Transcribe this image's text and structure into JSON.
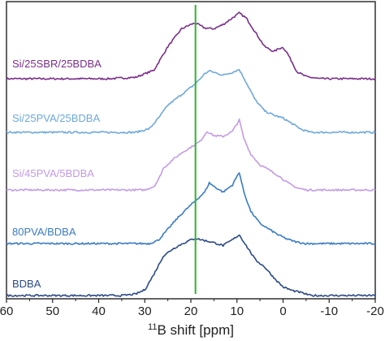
{
  "chart_data": {
    "type": "line",
    "xlabel": {
      "superscript": "11",
      "text": "B shift [ppm]"
    },
    "x_axis_reversed": true,
    "xlim": [
      60,
      -20
    ],
    "x_ticks": [
      "60",
      "50",
      "40",
      "30",
      "20",
      "10",
      "0",
      "-10",
      "-20"
    ],
    "y_axis_shown": false,
    "grid": false,
    "legend": "none",
    "reference_line": {
      "x": 19,
      "color": "#2db52d"
    },
    "series": [
      {
        "name": "Si/25SBR/25BDBA",
        "color": "#7a2e8a",
        "x": [
          60,
          38,
          32,
          28,
          25,
          22,
          20,
          19,
          17,
          15,
          13,
          11,
          9.5,
          8,
          6,
          4,
          2,
          1,
          0,
          -1,
          -3,
          -5,
          -8,
          -20
        ],
        "y": [
          0,
          0,
          0.02,
          0.12,
          0.45,
          0.7,
          0.76,
          0.78,
          0.71,
          0.7,
          0.76,
          0.85,
          0.92,
          0.85,
          0.65,
          0.45,
          0.38,
          0.42,
          0.44,
          0.35,
          0.1,
          0.03,
          0,
          0
        ]
      },
      {
        "name": "Si/25PVA/25BDBA",
        "color": "#6ea8dc",
        "x": [
          60,
          32,
          29,
          27,
          25,
          23,
          21,
          19,
          17,
          16,
          15,
          13,
          11,
          9.5,
          8,
          6,
          4,
          2,
          0,
          -2,
          -4,
          -6,
          -20
        ],
        "y": [
          0,
          0,
          0.05,
          0.2,
          0.38,
          0.48,
          0.58,
          0.68,
          0.82,
          0.86,
          0.84,
          0.8,
          0.84,
          0.88,
          0.7,
          0.45,
          0.3,
          0.24,
          0.2,
          0.12,
          0.04,
          0,
          0
        ]
      },
      {
        "name": "Si/45PVA/5BDBA",
        "color": "#c39be6",
        "x": [
          60,
          30,
          28,
          27,
          26,
          24,
          22,
          20,
          18,
          16.5,
          15,
          13,
          11,
          9.5,
          8.5,
          7,
          5,
          3,
          1,
          -1,
          -3,
          -5,
          -20
        ],
        "y": [
          0,
          0,
          0.05,
          0.15,
          0.3,
          0.42,
          0.52,
          0.6,
          0.68,
          0.82,
          0.76,
          0.75,
          0.82,
          0.98,
          0.72,
          0.5,
          0.35,
          0.28,
          0.2,
          0.1,
          0.03,
          0,
          0
        ]
      },
      {
        "name": "80PVA/BDBA",
        "color": "#3a7cc4",
        "x": [
          60,
          29,
          27,
          25,
          23,
          21,
          19,
          17,
          16,
          15,
          13,
          11,
          9.5,
          8.5,
          7,
          5,
          3,
          1,
          -1,
          -3,
          -5,
          -20
        ],
        "y": [
          0,
          0,
          0.05,
          0.2,
          0.35,
          0.48,
          0.6,
          0.72,
          0.85,
          0.8,
          0.72,
          0.82,
          1.0,
          0.72,
          0.45,
          0.28,
          0.2,
          0.12,
          0.06,
          0.02,
          0,
          0
        ]
      },
      {
        "name": "BDBA",
        "color": "#2c4a86",
        "x": [
          60,
          35,
          32,
          30,
          28,
          26,
          24,
          22,
          20,
          19,
          17,
          15,
          13,
          11,
          9.5,
          8,
          6,
          4,
          2,
          0,
          -2,
          -4,
          -6,
          -20
        ],
        "y": [
          0,
          0,
          0.02,
          0.08,
          0.3,
          0.55,
          0.65,
          0.72,
          0.78,
          0.8,
          0.77,
          0.74,
          0.7,
          0.78,
          0.85,
          0.7,
          0.5,
          0.4,
          0.25,
          0.12,
          0.07,
          0.04,
          0,
          0
        ]
      }
    ]
  }
}
